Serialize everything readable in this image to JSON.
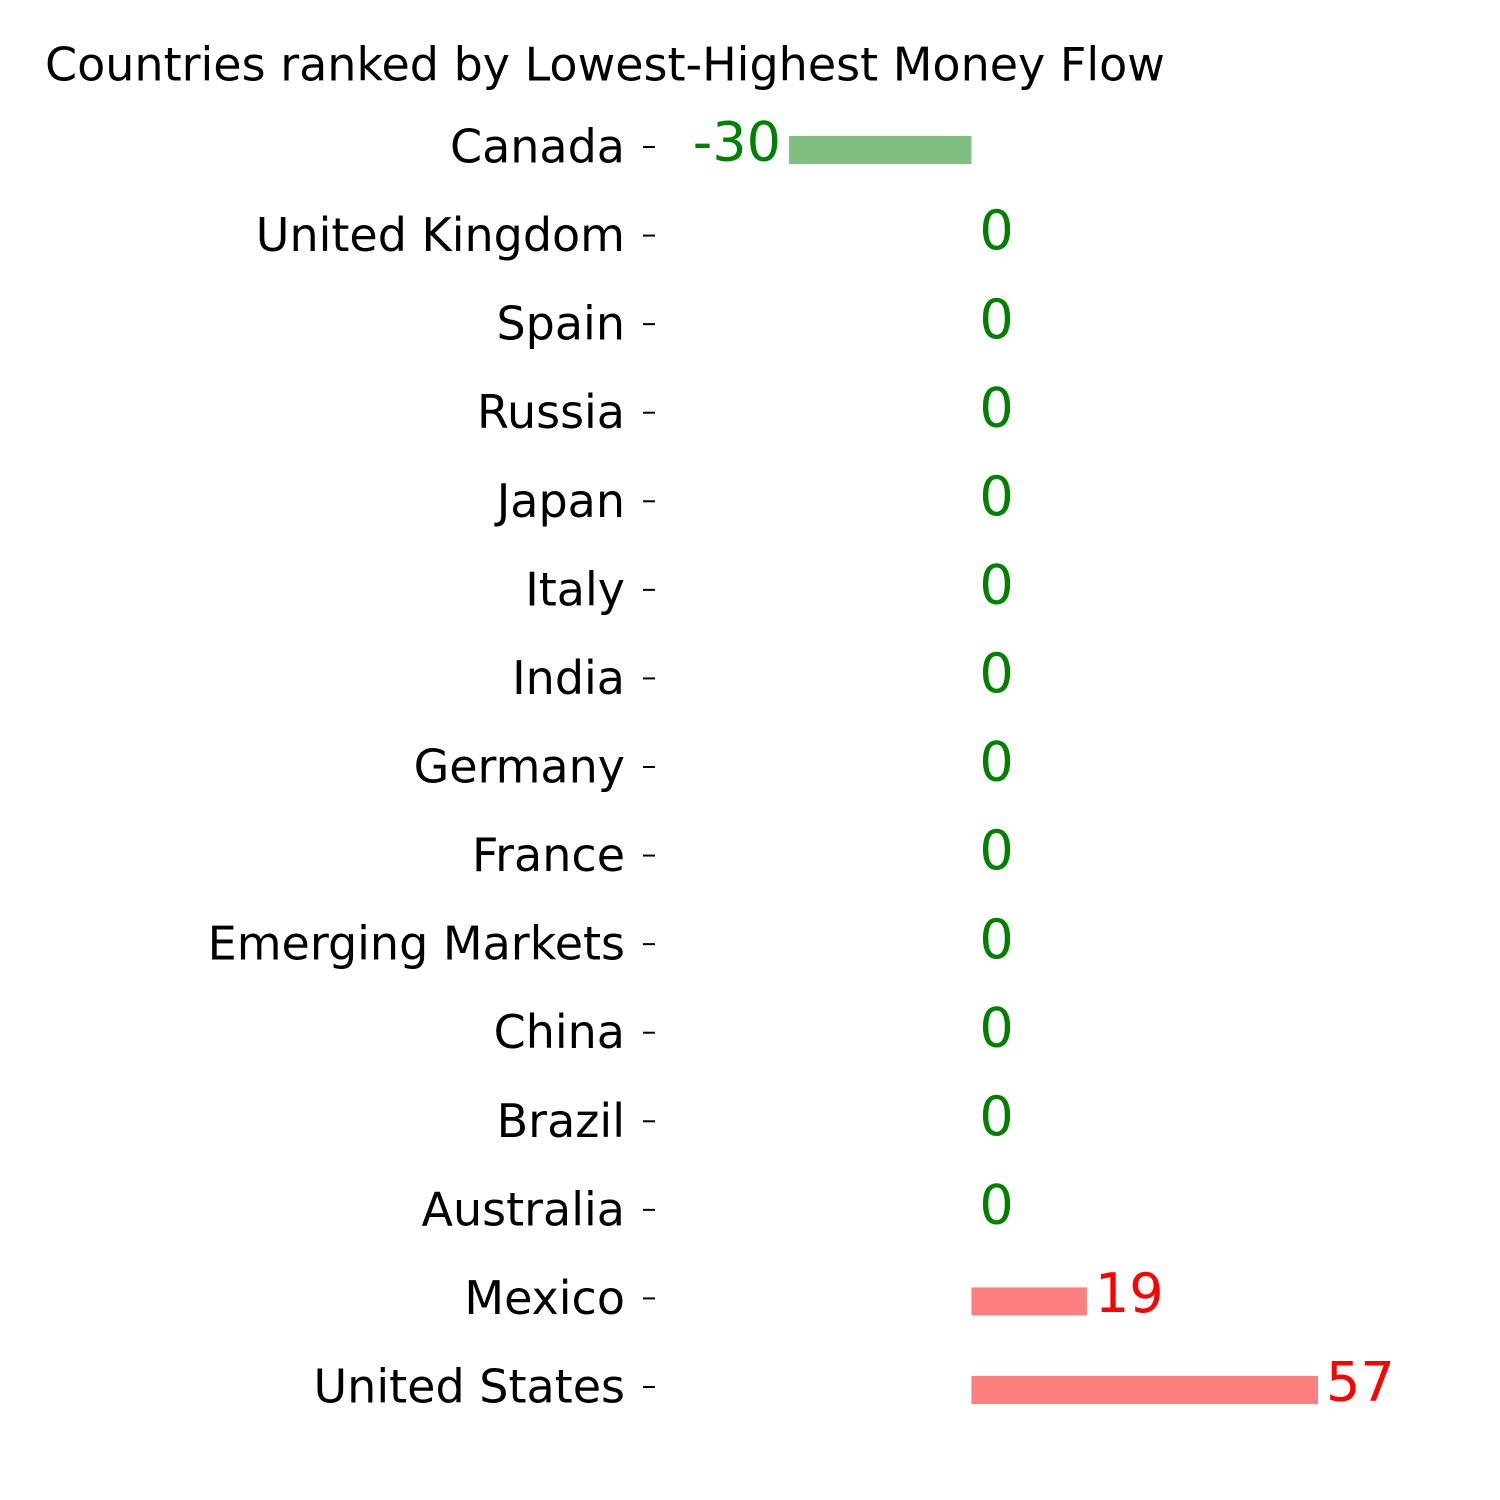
{
  "chart_data": {
    "type": "barh",
    "title": "Countries ranked by Lowest-Highest Money Flow",
    "categories": [
      "Canada",
      "United Kingdom",
      "Spain",
      "Russia",
      "Japan",
      "Italy",
      "India",
      "Germany",
      "France",
      "Emerging Markets",
      "China",
      "Brazil",
      "Australia",
      "Mexico",
      "United States"
    ],
    "values": [
      -30,
      0,
      0,
      0,
      0,
      0,
      0,
      0,
      0,
      0,
      0,
      0,
      0,
      19,
      57
    ],
    "colors": {
      "positive": "#ff0000",
      "negative": "#008000"
    }
  }
}
